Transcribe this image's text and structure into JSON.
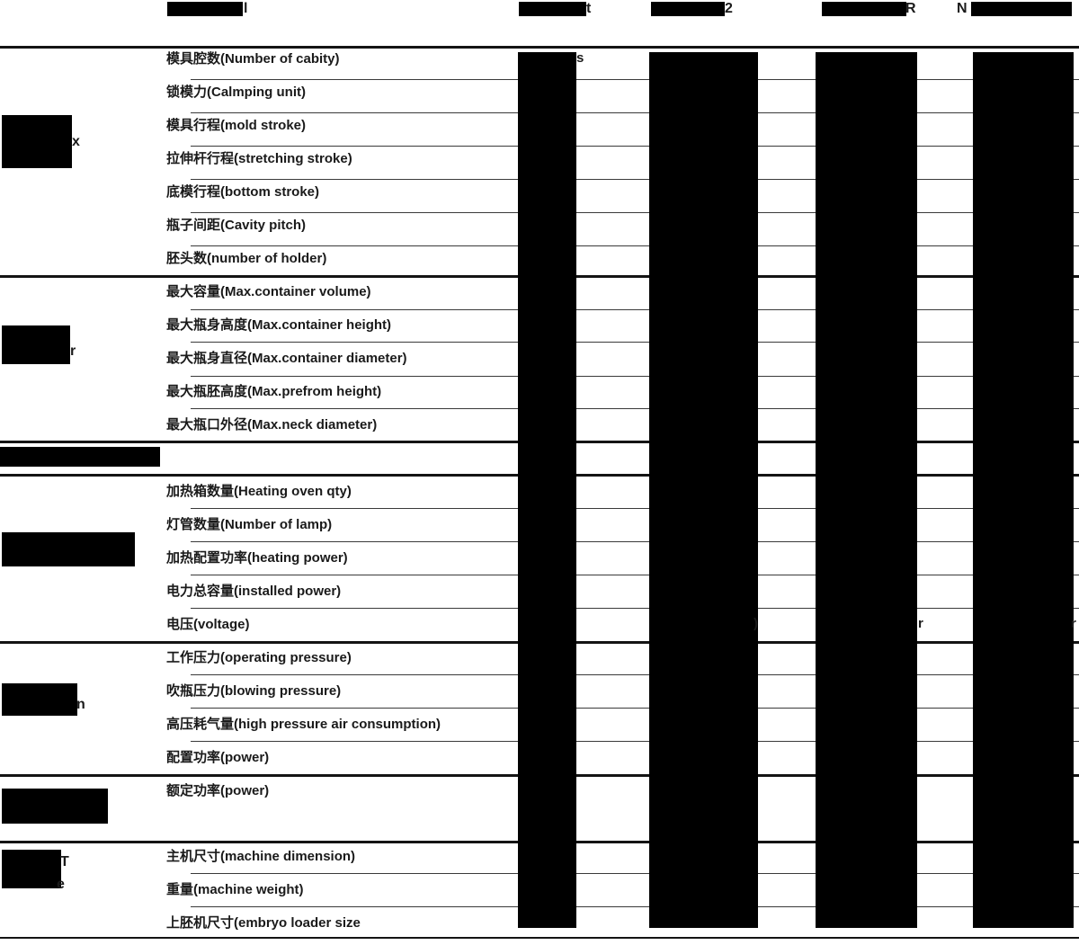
{
  "colors": {
    "redaction": "#000000",
    "text": "#1a1a1a",
    "line_thin": "#3a3a3a",
    "line_thick": "#141414"
  },
  "header": {
    "model_column": {
      "redacted": true,
      "visible_suffix": "l"
    },
    "data_columns": [
      {
        "redacted": true,
        "visible_suffix": "t"
      },
      {
        "redacted": true,
        "visible_suffix": "2"
      },
      {
        "redacted": true,
        "visible_suffix": "R"
      },
      {
        "redacted": true,
        "visible_prefix": "N"
      }
    ]
  },
  "rows": [
    {
      "label": "模具腔数(Number of cabity)"
    },
    {
      "label": "锁模力(Calmping unit)"
    },
    {
      "label": "模具行程(mold stroke)"
    },
    {
      "label": "拉伸杆行程(stretching stroke)"
    },
    {
      "label": "底模行程(bottom stroke)"
    },
    {
      "label": "瓶子间距(Cavity pitch)"
    },
    {
      "label": "胚头数(number of holder)"
    },
    {
      "label": "最大容量(Max.container volume)"
    },
    {
      "label": "最大瓶身高度(Max.container height)"
    },
    {
      "label": "最大瓶身直径(Max.container diameter)"
    },
    {
      "label": "最大瓶胚高度(Max.prefrom height)"
    },
    {
      "label": "最大瓶口外径(Max.neck diameter)"
    },
    {
      "label": "加热箱数量(Heating oven qty)"
    },
    {
      "label": "灯管数量(Number of lamp)"
    },
    {
      "label": "加热配置功率(heating power)"
    },
    {
      "label": "电力总容量(installed power)"
    },
    {
      "label": "电压(voltage)"
    },
    {
      "label": "工作压力(operating pressure)"
    },
    {
      "label": "吹瓶压力(blowing pressure)"
    },
    {
      "label": "高压耗气量(high pressure air consumption)"
    },
    {
      "label": "配置功率(power)"
    },
    {
      "label": "额定功率(power)"
    },
    {
      "label": "主机尺寸(machine dimension)"
    },
    {
      "label": "重量(machine weight)"
    },
    {
      "label": "上胚机尺寸(embryo loader size"
    }
  ],
  "categories": [
    {
      "redacted": true,
      "visible_fragment": "x"
    },
    {
      "redacted": true,
      "visible_fragment": "r"
    },
    {
      "redacted": true,
      "visible_fragment": ""
    },
    {
      "redacted": true,
      "visible_fragment": "n"
    },
    {
      "redacted": true,
      "visible_fragment": ""
    },
    {
      "redacted": true,
      "visible_fragment": "Te"
    },
    {
      "redacted": true,
      "visible_fragment": ""
    }
  ],
  "fragments": {
    "header": [
      {
        "text": "l"
      },
      {
        "text": "t"
      },
      {
        "text": "2"
      },
      {
        "text": "R"
      },
      {
        "text": "N"
      }
    ],
    "categories": [
      {
        "text": "x"
      },
      {
        "text": "r"
      },
      {
        "text": "n"
      },
      {
        "text": "T"
      },
      {
        "text": "e"
      }
    ],
    "cells": [
      {
        "row": "模具腔数(Number of cabity)",
        "text": "s"
      },
      {
        "row": "电压(voltage)",
        "text": ")"
      },
      {
        "row": "电压(voltage)",
        "text": "r"
      },
      {
        "row": "电压(voltage)",
        "text": "r"
      }
    ]
  }
}
